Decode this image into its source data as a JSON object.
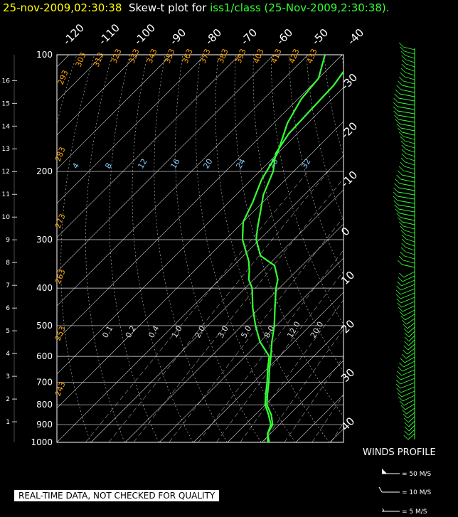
{
  "header": {
    "timestamp": "25-nov-2009,02:30:38",
    "plot_label": "Skew-t plot for",
    "station": "iss1/class",
    "run_time": "(25-Nov-2009,2:30:38)."
  },
  "notice": "REAL-TIME DATA, NOT CHECKED FOR QUALITY",
  "winds": {
    "title": "WINDS PROFILE",
    "legend": [
      "= 50 M/S",
      "= 10 M/S",
      "= 5 M/S"
    ]
  },
  "colors": {
    "temperature": "#33ff33",
    "dewpoint": "#33ff33",
    "wind": "#33ff33",
    "grid": "#ffffff",
    "dry_adiabat": "#ffa500",
    "mixing_ratio": "#87cefa"
  },
  "chart_data": {
    "type": "line",
    "title": "Skew-t plot",
    "y_pressure_ticks": [
      100,
      200,
      300,
      400,
      500,
      600,
      700,
      800,
      900,
      1000
    ],
    "height_km_ticks": [
      1,
      2,
      3,
      4,
      5,
      6,
      7,
      8,
      9,
      10,
      11,
      12,
      13,
      14,
      15,
      16
    ],
    "temp_ticks_top": [
      "-120",
      "-110",
      "-100",
      "-90",
      "-80",
      "-70",
      "-60",
      "-50",
      "-40"
    ],
    "temp_ticks_right": [
      "-30",
      "-20",
      "-10",
      "0",
      "10",
      "20",
      "30",
      "40"
    ],
    "dry_adiabat_labels": [
      "293",
      "303",
      "313",
      "323",
      "333",
      "343",
      "353",
      "363",
      "373",
      "383",
      "393",
      "403",
      "413",
      "423",
      "433",
      "283",
      "273",
      "263",
      "253",
      "243"
    ],
    "mixing_ratio_labels_upper": [
      "4",
      "8",
      "12",
      "16",
      "20",
      "24",
      "28",
      "32"
    ],
    "mixing_ratio_labels_lower": [
      "0.1",
      "0.2",
      "0.4",
      "1.0",
      "2.0",
      "3.0",
      "5.0",
      "8.0",
      "12.0",
      "20.0"
    ],
    "series": [
      {
        "name": "temperature",
        "points": [
          [
            1000,
            12.2
          ],
          [
            950,
            9.2
          ],
          [
            900,
            8
          ],
          [
            850,
            4.8
          ],
          [
            800,
            0.5
          ],
          [
            750,
            -2.5
          ],
          [
            700,
            -5.5
          ],
          [
            650,
            -9
          ],
          [
            600,
            -12.5
          ],
          [
            550,
            -16.5
          ],
          [
            500,
            -20.5
          ],
          [
            450,
            -25.5
          ],
          [
            400,
            -31
          ],
          [
            380,
            -33
          ],
          [
            350,
            -38
          ],
          [
            330,
            -45
          ],
          [
            300,
            -51
          ],
          [
            280,
            -54
          ],
          [
            260,
            -57
          ],
          [
            230,
            -62
          ],
          [
            200,
            -66
          ],
          [
            180,
            -70.5
          ],
          [
            160,
            -72.5
          ],
          [
            140,
            -73
          ],
          [
            120,
            -73.5
          ],
          [
            100,
            -76
          ]
        ]
      },
      {
        "name": "dewpoint",
        "points": [
          [
            1000,
            11.8
          ],
          [
            950,
            9.2
          ],
          [
            900,
            7.5
          ],
          [
            850,
            4
          ],
          [
            800,
            0
          ],
          [
            750,
            -3
          ],
          [
            700,
            -6
          ],
          [
            650,
            -9.5
          ],
          [
            600,
            -13
          ],
          [
            550,
            -20
          ],
          [
            500,
            -26
          ],
          [
            450,
            -32
          ],
          [
            400,
            -38
          ],
          [
            380,
            -41.5
          ],
          [
            360,
            -44
          ],
          [
            340,
            -47
          ],
          [
            300,
            -55
          ],
          [
            270,
            -60
          ],
          [
            240,
            -63
          ],
          [
            210,
            -67
          ],
          [
            180,
            -70
          ],
          [
            150,
            -76
          ],
          [
            130,
            -79
          ],
          [
            115,
            -80
          ],
          [
            100,
            -85
          ]
        ]
      }
    ]
  }
}
